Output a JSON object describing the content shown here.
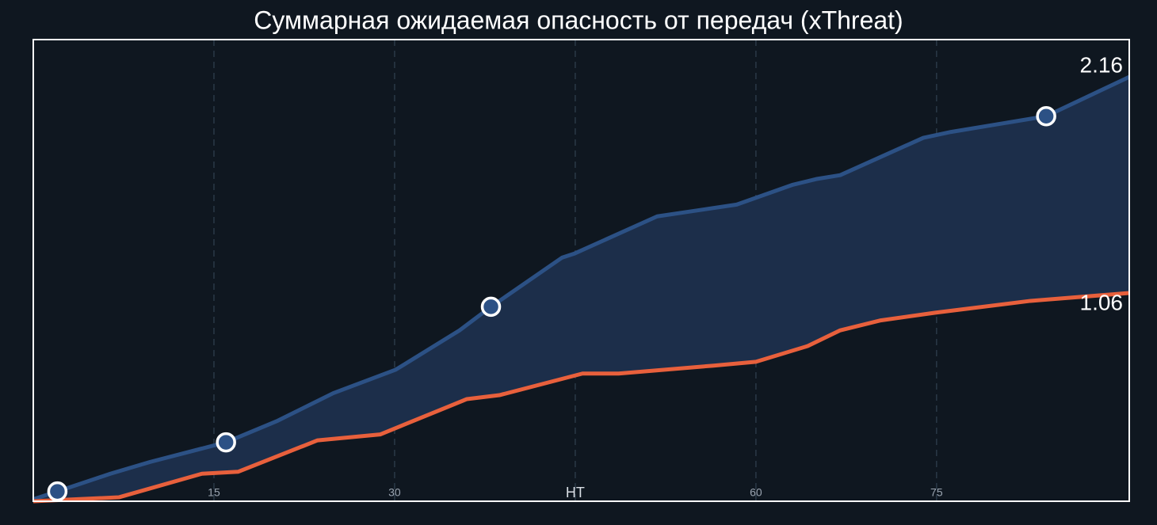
{
  "chart_data": {
    "type": "line",
    "title": "Суммарная ожидаемая опасность от передач (xThreat)",
    "xlim": [
      0,
      91
    ],
    "ylim": [
      0,
      2.35
    ],
    "xticks": [
      15,
      30,
      {
        "value": 45,
        "label": "HT"
      },
      60,
      75
    ],
    "grid": true,
    "fill_between": "#1c2e4a",
    "series": [
      {
        "color": "#2c5185",
        "x": [
          0,
          2,
          6.4,
          9.7,
          16,
          20.3,
          24.9,
          30.1,
          35.4,
          38,
          43.9,
          44.9,
          51.8,
          55.1,
          58.4,
          63,
          65,
          67,
          73.9,
          76.2,
          84.1,
          91
        ],
        "values": [
          0.01,
          0.05,
          0.14,
          0.2,
          0.3,
          0.41,
          0.55,
          0.67,
          0.87,
          0.99,
          1.24,
          1.26,
          1.45,
          1.48,
          1.51,
          1.61,
          1.64,
          1.66,
          1.85,
          1.88,
          1.96,
          2.16
        ]
      },
      {
        "color": "#e8603c",
        "x": [
          0,
          7.1,
          14,
          17,
          23.6,
          28.8,
          36,
          38.7,
          45.6,
          48.6,
          56.4,
          60,
          64.3,
          67,
          70.3,
          74.9,
          82.8,
          91
        ],
        "values": [
          0,
          0.02,
          0.14,
          0.15,
          0.31,
          0.34,
          0.52,
          0.54,
          0.65,
          0.65,
          0.69,
          0.71,
          0.79,
          0.87,
          0.92,
          0.96,
          1.02,
          1.06
        ]
      }
    ],
    "highlight_points": {
      "x": [
        2,
        16,
        38,
        84.1
      ],
      "values": [
        0.05,
        0.3,
        0.99,
        1.96
      ]
    }
  }
}
